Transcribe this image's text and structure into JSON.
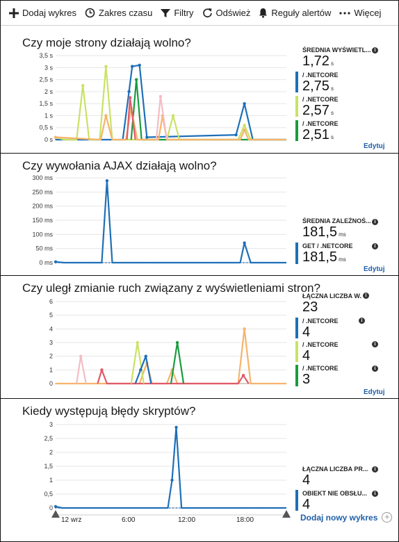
{
  "toolbar": {
    "add_chart": "Dodaj wykres",
    "time_range": "Zakres czasu",
    "filters": "Filtry",
    "refresh": "Odśwież",
    "alert_rules": "Reguły alertów",
    "more": "Więcej"
  },
  "colors": {
    "blue": "#1e6fb8",
    "lime": "#c9e265",
    "green": "#1a9b3f",
    "orange": "#f7b36b",
    "pink": "#f5bcc4",
    "red": "#e05a6a",
    "link": "#1f5fa8"
  },
  "panels": [
    {
      "title": "Czy moje strony działają wolno?",
      "metrics": [
        {
          "label": "ŚREDNIA WYŚWIETL...",
          "value": "1,72",
          "unit": "s"
        },
        {
          "label": "/ .NETCORE",
          "value": "2,75",
          "unit": "s",
          "color": "#1e6fb8"
        },
        {
          "label": "/ .NETCORE",
          "value": "2,57",
          "unit": "s",
          "color": "#c9e265"
        },
        {
          "label": "/ .NETCORE",
          "value": "2,51",
          "unit": "s",
          "color": "#1a9b3f"
        }
      ],
      "edit": "Edytuj"
    },
    {
      "title": "Czy wywołania AJAX działają wolno?",
      "metrics": [
        {
          "label": "ŚREDNIA ZALEŻNOŚ...",
          "value": "181,5",
          "unit": "ms"
        },
        {
          "label": "GET / .NETCORE",
          "value": "181,5",
          "unit": "ms",
          "color": "#1e6fb8"
        }
      ],
      "edit": "Edytuj"
    },
    {
      "title": "Czy uległ zmianie ruch związany z wyświetleniami stron?",
      "metrics": [
        {
          "label": "ŁĄCZNA LICZBA W...",
          "value": "23",
          "unit": ""
        },
        {
          "label": "/ .NETCORE",
          "value": "4",
          "unit": "",
          "color": "#1e6fb8"
        },
        {
          "label": "/ .NETCORE",
          "value": "4",
          "unit": "",
          "color": "#c9e265"
        },
        {
          "label": "/ .NETCORE",
          "value": "3",
          "unit": "",
          "color": "#1a9b3f"
        }
      ],
      "edit": "Edytuj"
    },
    {
      "title": "Kiedy występują błędy skryptów?",
      "metrics": [
        {
          "label": "ŁĄCZNA LICZBA PR...",
          "value": "4",
          "unit": ""
        },
        {
          "label": "OBIEKT NIE OBSŁU...",
          "value": "4",
          "unit": "",
          "color": "#1e6fb8"
        }
      ],
      "add_chart": "Dodaj nowy wykres"
    }
  ],
  "x_axis": {
    "labels": [
      "12 wrz",
      "6:00",
      "12:00",
      "18:00"
    ]
  },
  "chart_data": [
    {
      "type": "line",
      "ylabels": [
        "0 s",
        "0,5 s",
        "1 s",
        "1,5 s",
        "2 s",
        "2,5 s",
        "3 s",
        "3,5 s"
      ],
      "ylim": [
        0,
        3.5
      ],
      "series": [
        {
          "color": "#1e6fb8",
          "points": [
            [
              0.0,
              0
            ],
            [
              3.2,
              0
            ],
            [
              3.5,
              2.0
            ],
            [
              3.65,
              3.05
            ],
            [
              4.0,
              3.1
            ],
            [
              4.35,
              0.1
            ],
            [
              8.6,
              0.2
            ],
            [
              9.0,
              1.5
            ],
            [
              9.4,
              0
            ],
            [
              11,
              0
            ]
          ]
        },
        {
          "color": "#c9e265",
          "points": [
            [
              0.0,
              0.1
            ],
            [
              0.4,
              0
            ],
            [
              1.0,
              0
            ],
            [
              1.3,
              2.25
            ],
            [
              1.6,
              0
            ],
            [
              2.1,
              0
            ],
            [
              2.4,
              3.05
            ],
            [
              2.7,
              0
            ],
            [
              5.3,
              0
            ],
            [
              5.6,
              1.0
            ],
            [
              5.9,
              0
            ],
            [
              8.7,
              0
            ],
            [
              9.0,
              0.6
            ],
            [
              9.3,
              0
            ],
            [
              11,
              0
            ]
          ]
        },
        {
          "color": "#1a9b3f",
          "points": [
            [
              3.6,
              0
            ],
            [
              3.85,
              2.5
            ],
            [
              4.1,
              0
            ],
            [
              11,
              0
            ]
          ]
        },
        {
          "color": "#f7b36b",
          "points": [
            [
              0.0,
              0.1
            ],
            [
              2.15,
              0
            ],
            [
              2.4,
              1.0
            ],
            [
              2.7,
              0
            ],
            [
              3.35,
              0
            ],
            [
              3.6,
              1.3
            ],
            [
              3.9,
              0
            ],
            [
              4.9,
              0
            ],
            [
              5.1,
              1.0
            ],
            [
              5.3,
              0
            ],
            [
              8.8,
              0
            ],
            [
              9.0,
              0.4
            ],
            [
              9.2,
              0
            ],
            [
              11,
              0
            ]
          ]
        },
        {
          "color": "#f5bcc4",
          "points": [
            [
              4.8,
              0
            ],
            [
              5.0,
              1.8
            ],
            [
              5.3,
              0
            ]
          ]
        },
        {
          "color": "#e05a6a",
          "points": [
            [
              3.4,
              0
            ],
            [
              3.55,
              1.75
            ],
            [
              3.8,
              0
            ]
          ]
        }
      ]
    },
    {
      "type": "line",
      "ylabels": [
        "0 ms",
        "50 ms",
        "100 ms",
        "150 ms",
        "200 ms",
        "250 ms",
        "300 ms"
      ],
      "ylim": [
        0,
        300
      ],
      "series": [
        {
          "color": "#1e6fb8",
          "points": [
            [
              0.0,
              3
            ],
            [
              0.4,
              0
            ],
            [
              2.2,
              0
            ],
            [
              2.45,
              290
            ],
            [
              2.7,
              0
            ],
            [
              8.8,
              0
            ],
            [
              9.0,
              70
            ],
            [
              9.3,
              0
            ],
            [
              11,
              0
            ]
          ]
        }
      ]
    },
    {
      "type": "line",
      "ylabels": [
        "0",
        "1",
        "2",
        "3",
        "4",
        "5",
        "6"
      ],
      "ylim": [
        0,
        6
      ],
      "series": [
        {
          "color": "#f7b36b",
          "points": [
            [
              0.0,
              0
            ],
            [
              4.0,
              0
            ],
            [
              4.35,
              1.5
            ],
            [
              4.6,
              0
            ],
            [
              5.3,
              0
            ],
            [
              5.55,
              1.0
            ],
            [
              5.8,
              0
            ],
            [
              8.7,
              0
            ],
            [
              9.0,
              4.0
            ],
            [
              9.3,
              0
            ],
            [
              11,
              0
            ]
          ]
        },
        {
          "color": "#f5bcc4",
          "points": [
            [
              1.0,
              0
            ],
            [
              1.2,
              2.0
            ],
            [
              1.45,
              0
            ]
          ]
        },
        {
          "color": "#e05a6a",
          "points": [
            [
              2.0,
              0
            ],
            [
              2.2,
              1.0
            ],
            [
              2.45,
              0
            ],
            [
              8.7,
              0
            ],
            [
              8.95,
              0.6
            ],
            [
              9.2,
              0
            ]
          ]
        },
        {
          "color": "#c9e265",
          "points": [
            [
              3.6,
              0
            ],
            [
              3.9,
              3.0
            ],
            [
              4.2,
              0
            ]
          ]
        },
        {
          "color": "#1e6fb8",
          "points": [
            [
              3.8,
              0
            ],
            [
              4.05,
              1.0
            ],
            [
              4.3,
              2.0
            ],
            [
              4.55,
              0
            ]
          ]
        },
        {
          "color": "#1a9b3f",
          "points": [
            [
              5.5,
              0
            ],
            [
              5.8,
              3.0
            ],
            [
              6.1,
              0
            ]
          ]
        }
      ]
    },
    {
      "type": "line",
      "ylabels": [
        "0",
        "0,5",
        "1",
        "1,5",
        "2",
        "2,5",
        "3"
      ],
      "ylim": [
        0,
        3
      ],
      "series": [
        {
          "color": "#1e6fb8",
          "points": [
            [
              0.0,
              0.05
            ],
            [
              0.3,
              0
            ],
            [
              5.35,
              0
            ],
            [
              5.55,
              1.0
            ],
            [
              5.75,
              2.9
            ],
            [
              6.0,
              0
            ],
            [
              11,
              0
            ]
          ]
        }
      ]
    }
  ]
}
